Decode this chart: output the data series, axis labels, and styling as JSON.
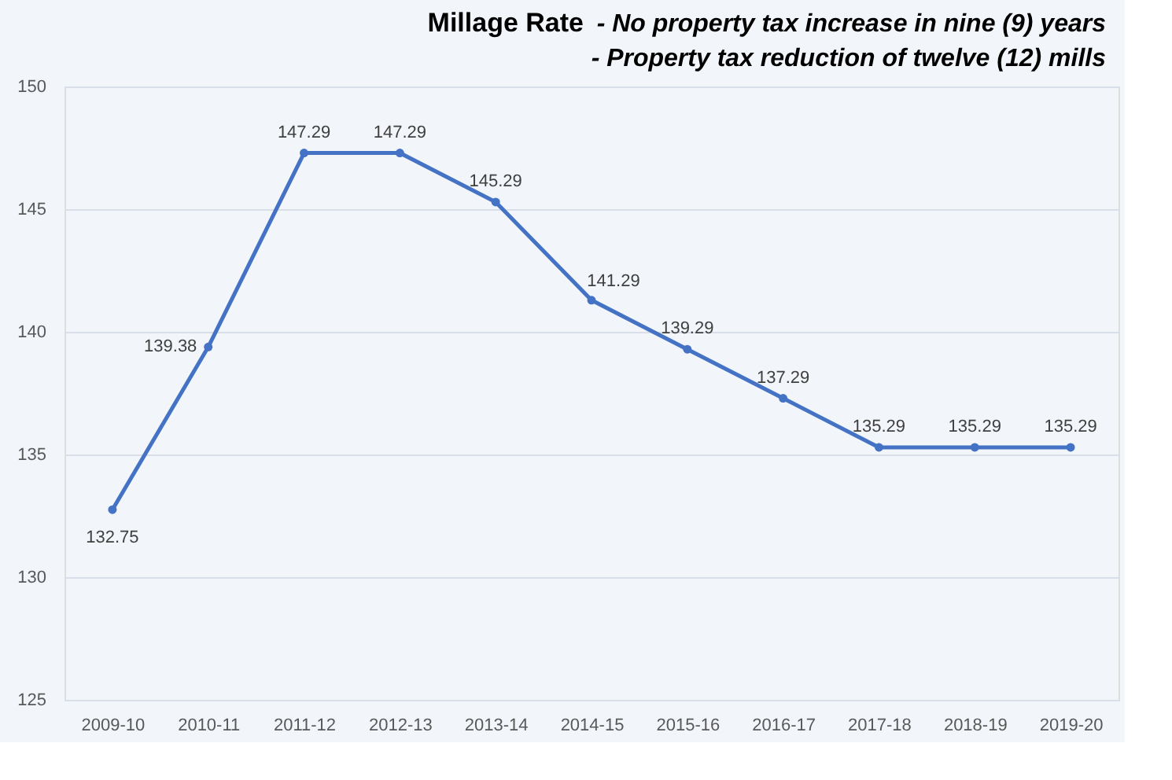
{
  "chart_data": {
    "type": "line",
    "title": "Millage Rate",
    "annotations": [
      "- No property tax increase in nine (9) years",
      "- Property tax reduction of twelve (12) mills"
    ],
    "categories": [
      "2009-10",
      "2010-11",
      "2011-12",
      "2012-13",
      "2013-14",
      "2014-15",
      "2015-16",
      "2016-17",
      "2017-18",
      "2018-19",
      "2019-20"
    ],
    "series": [
      {
        "color": "#4472c4",
        "values": [
          132.75,
          139.38,
          147.29,
          147.29,
          145.29,
          141.29,
          139.29,
          137.29,
          135.29,
          135.29,
          135.29
        ]
      }
    ],
    "ylim": [
      125,
      150
    ],
    "yticks": [
      125,
      130,
      135,
      140,
      145,
      150
    ],
    "grid": "y",
    "marker": "circle",
    "line_style": "solid",
    "data_labels": true
  }
}
